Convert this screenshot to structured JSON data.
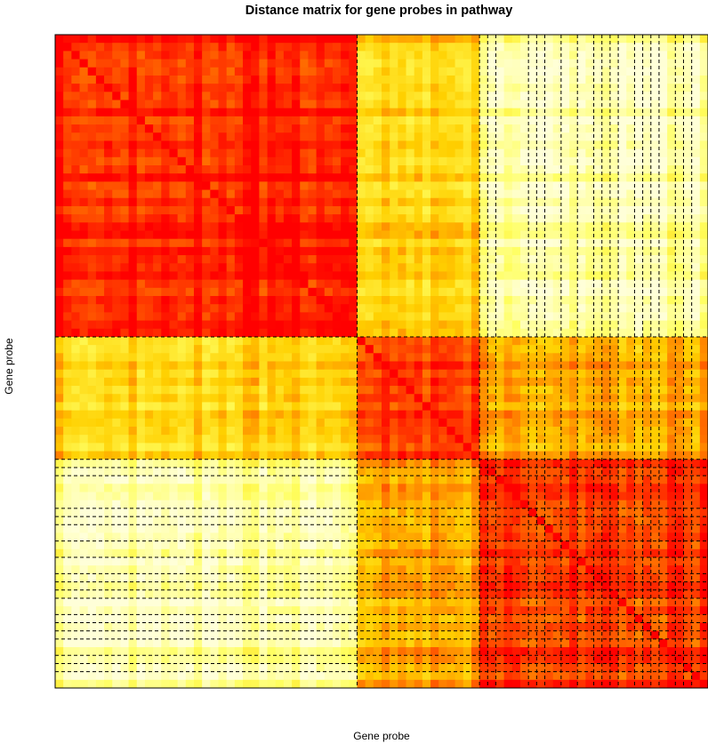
{
  "chart_data": {
    "type": "heatmap",
    "title": "Distance matrix for gene probes in pathway",
    "xlabel": "Gene probe",
    "ylabel": "Gene probe",
    "n_probes": 80,
    "clusters": [
      {
        "from": 1,
        "to": 37
      },
      {
        "from": 38,
        "to": 52
      },
      {
        "from": 53,
        "to": 80
      }
    ],
    "cluster_distance": [
      [
        0.05,
        0.5,
        0.88
      ],
      [
        0.5,
        0.1,
        0.38
      ],
      [
        0.88,
        0.38,
        0.12
      ]
    ],
    "color_scale": [
      "#ff0000",
      "#ff6a00",
      "#ffd000",
      "#ffff60",
      "#ffffd8"
    ],
    "color_scale_meaning": [
      "low distance",
      "high distance"
    ],
    "marked_columns": [
      38,
      53,
      54,
      55,
      59,
      60,
      61,
      63,
      65,
      67,
      68,
      69,
      70,
      72,
      73,
      74,
      75,
      77,
      78,
      79
    ],
    "marked_rows": [
      38,
      53,
      54,
      55,
      59,
      60,
      61,
      63,
      65,
      67,
      68,
      69,
      70,
      72,
      73,
      74,
      75,
      77,
      78,
      79
    ],
    "grid": false,
    "legend": "none"
  }
}
